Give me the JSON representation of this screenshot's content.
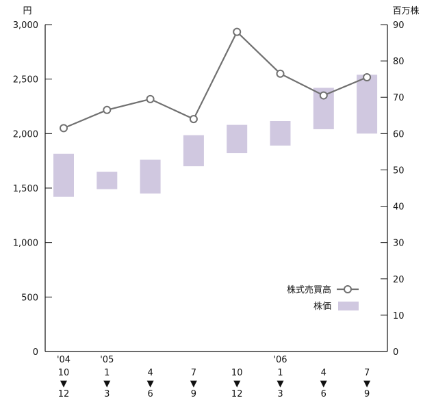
{
  "chart_data": {
    "type": "bar",
    "left_axis": {
      "unit": "円",
      "ylim": [
        0,
        3000
      ],
      "ticks": [
        "0",
        "500",
        "1,000",
        "1,500",
        "2,000",
        "2,500",
        "3,000"
      ],
      "tick_values": [
        0,
        500,
        1000,
        1500,
        2000,
        2500,
        3000
      ]
    },
    "right_axis": {
      "unit": "百万株",
      "ylim": [
        0,
        90
      ],
      "ticks": [
        "0",
        "10",
        "20",
        "30",
        "40",
        "50",
        "60",
        "70",
        "80",
        "90"
      ],
      "tick_values": [
        0,
        10,
        20,
        30,
        40,
        50,
        60,
        70,
        80,
        90
      ]
    },
    "categories": [
      {
        "year": "'04",
        "from": "10",
        "to": "12"
      },
      {
        "year": "'05",
        "from": "1",
        "to": "3"
      },
      {
        "year": "",
        "from": "4",
        "to": "6"
      },
      {
        "year": "",
        "from": "7",
        "to": "9"
      },
      {
        "year": "",
        "from": "10",
        "to": "12"
      },
      {
        "year": "'06",
        "from": "1",
        "to": "3"
      },
      {
        "year": "",
        "from": "4",
        "to": "6"
      },
      {
        "year": "",
        "from": "7",
        "to": "9"
      }
    ],
    "arrow_glyph": "▼",
    "series": [
      {
        "name": "株価",
        "kind": "range-bar",
        "axis": "left",
        "color": "#d0c8e0",
        "low": [
          1420,
          1490,
          1450,
          1700,
          1820,
          1890,
          2040,
          2000
        ],
        "high": [
          1815,
          1650,
          1760,
          1985,
          2080,
          2115,
          2420,
          2540
        ]
      },
      {
        "name": "株式売買高",
        "kind": "line",
        "axis": "right",
        "color": "#707070",
        "values": [
          61.5,
          66.5,
          69.5,
          64,
          88,
          76.5,
          70.5,
          75.5
        ]
      }
    ],
    "legend": {
      "position": "lower-right",
      "items": [
        {
          "label": "株式売買高",
          "marker": "line-circle"
        },
        {
          "label": "株価",
          "marker": "box"
        }
      ]
    },
    "grid": false
  }
}
